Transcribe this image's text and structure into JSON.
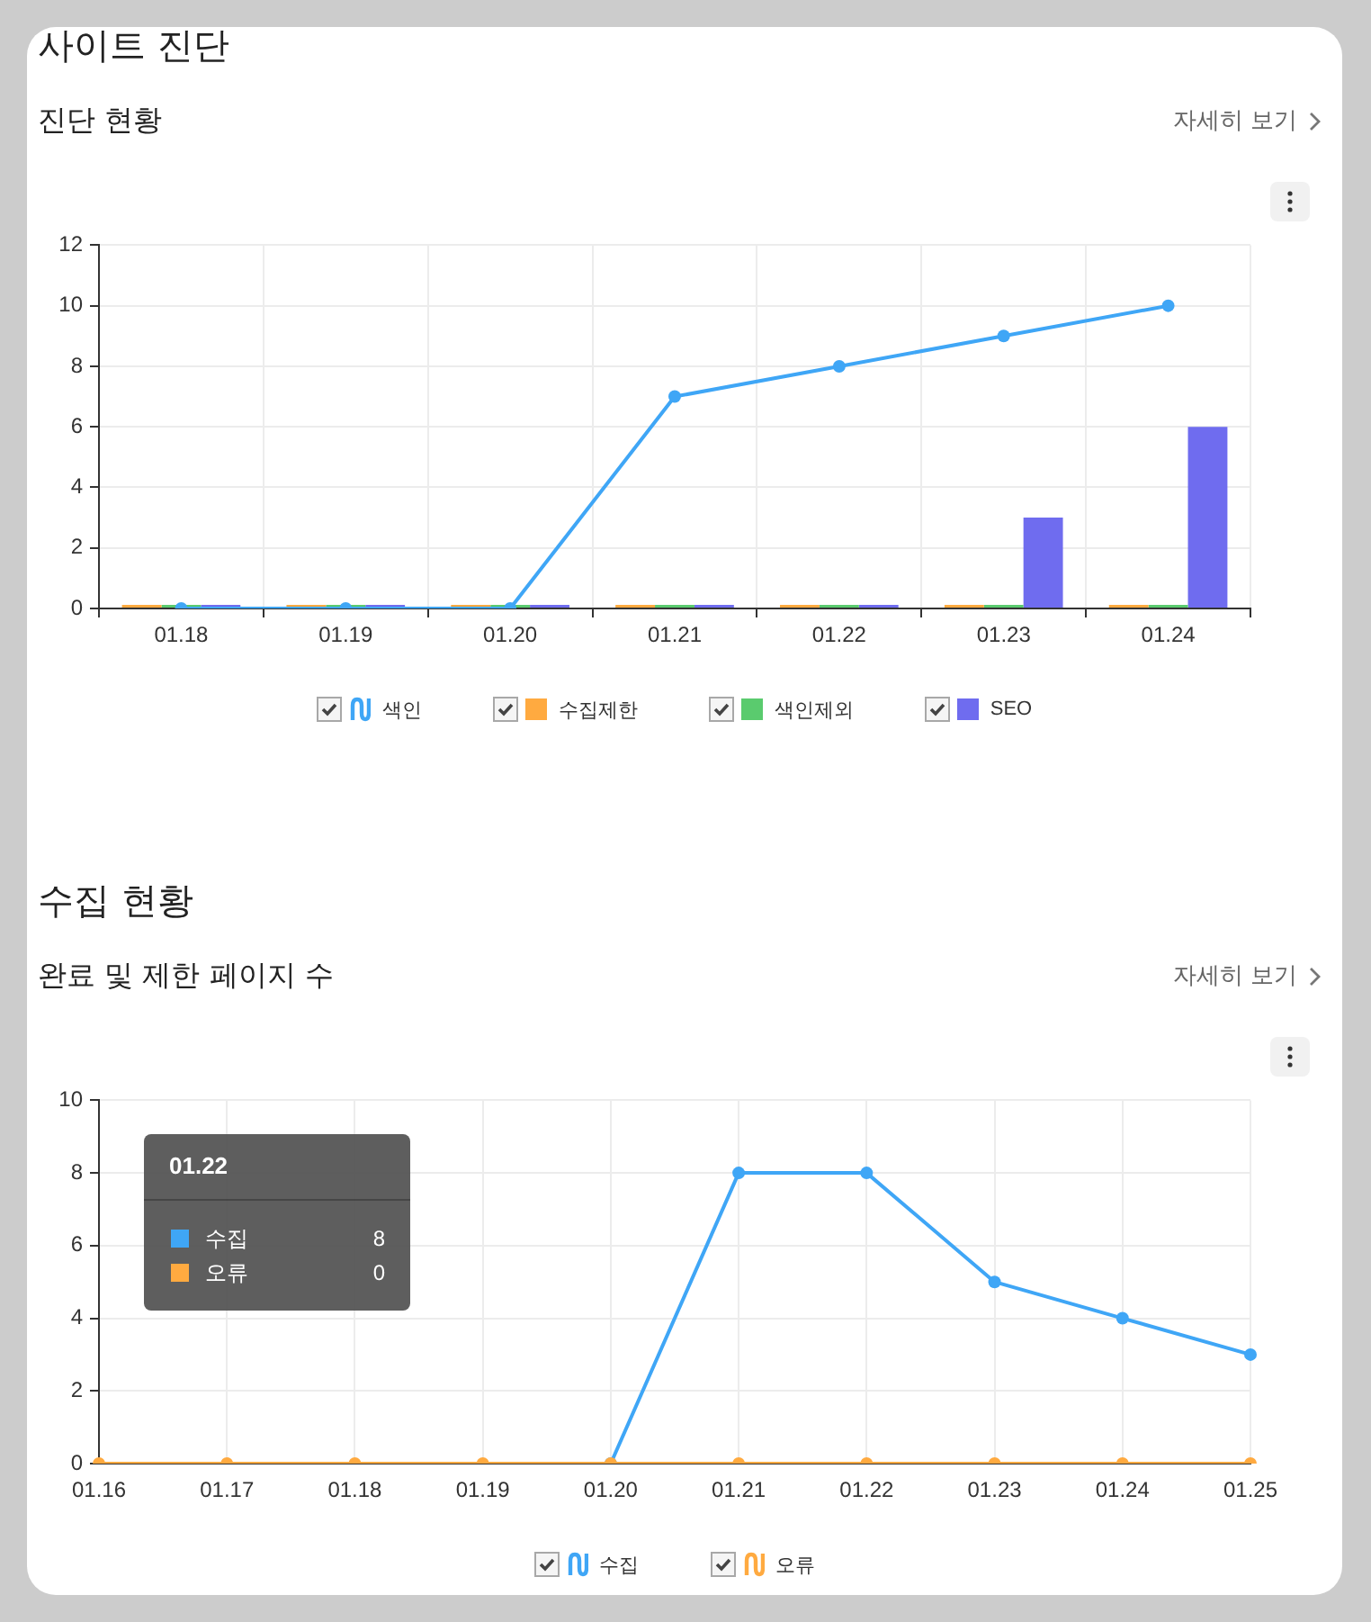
{
  "chart_data": [
    {
      "type": "bar",
      "title": "사이트 진단",
      "subtitle": "진단 현황",
      "annotations": [
        "자세히 보기"
      ],
      "categories": [
        "01.18",
        "01.19",
        "01.20",
        "01.21",
        "01.22",
        "01.23",
        "01.24"
      ],
      "series": [
        {
          "name": "색인",
          "type": "line",
          "color": "#3fa6f6",
          "values": [
            0,
            0,
            0,
            7,
            8,
            9,
            10
          ]
        },
        {
          "name": "수집제한",
          "color": "#ffaa40",
          "values": [
            0,
            0,
            0,
            0,
            0,
            0,
            0
          ]
        },
        {
          "name": "색인제외",
          "color": "#5acb6e",
          "values": [
            0,
            0,
            0,
            0,
            0,
            0,
            0
          ]
        },
        {
          "name": "SEO",
          "color": "#6f6cef",
          "values": [
            0,
            0,
            0,
            0,
            0,
            3,
            6
          ]
        }
      ],
      "ylim": [
        0,
        12
      ],
      "yticks": [
        0,
        2,
        4,
        6,
        8,
        10,
        12
      ],
      "grid": true,
      "legend": "bottom",
      "marker": "circle"
    },
    {
      "type": "line",
      "title": "수집 현황",
      "subtitle": "완료 및 제한 페이지 수",
      "annotations": [
        "자세히 보기",
        "01.22",
        "수집",
        "8",
        "오류",
        "0"
      ],
      "categories": [
        "01.16",
        "01.17",
        "01.18",
        "01.19",
        "01.20",
        "01.21",
        "01.22",
        "01.23",
        "01.24",
        "01.25"
      ],
      "series": [
        {
          "name": "수집",
          "color": "#3fa6f6",
          "values": [
            null,
            null,
            null,
            null,
            0,
            8,
            8,
            5,
            4,
            3
          ]
        },
        {
          "name": "오류",
          "color": "#ffaa40",
          "values": [
            0,
            0,
            0,
            0,
            0,
            0,
            0,
            0,
            0,
            0
          ]
        }
      ],
      "ylim": [
        0,
        10
      ],
      "yticks": [
        0,
        2,
        4,
        6,
        8,
        10
      ],
      "grid": true,
      "legend": "bottom",
      "marker": "circle"
    }
  ]
}
